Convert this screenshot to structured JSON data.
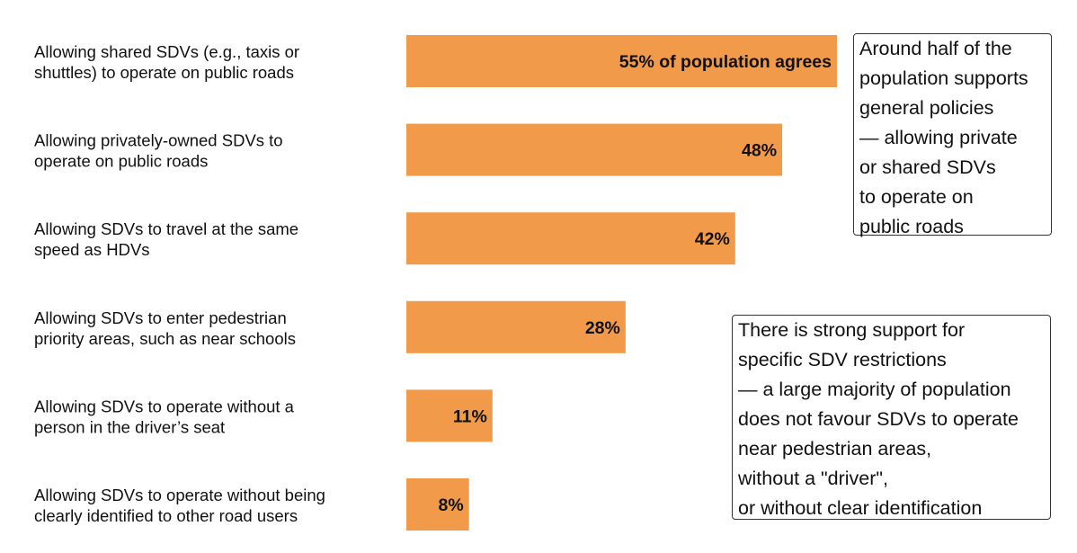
{
  "chart_data": {
    "type": "bar",
    "orientation": "horizontal",
    "categories": [
      "Allowing shared SDVs (e.g., taxis or\nshuttles) to operate on public roads",
      "Allowing privately-owned SDVs to\noperate on public roads",
      "Allowing SDVs to travel at the same\nspeed as HDVs",
      "Allowing SDVs to enter pedestrian\npriority areas, such as near schools",
      "Allowing SDVs to operate without a\nperson in the driver’s seat",
      "Allowing SDVs to operate without being\nclearly identified to other road users"
    ],
    "values": [
      55,
      48,
      42,
      28,
      11,
      8
    ],
    "data_labels": [
      "55% of population agrees",
      "48%",
      "42%",
      "28%",
      "11%",
      "8%"
    ],
    "xlim": [
      0,
      55
    ],
    "grid": false,
    "bar_color": "#F09A4A",
    "annotations": [
      "Around half of the\npopulation supports\ngeneral policies\n— allowing private\nor shared SDVs\nto operate on\npublic roads",
      "There is strong support for\nspecific SDV restrictions\n— a large majority of population\ndoes not favour SDVs to operate\nnear pedestrian areas,\nwithout a \"driver\",\nor without clear identification"
    ]
  }
}
